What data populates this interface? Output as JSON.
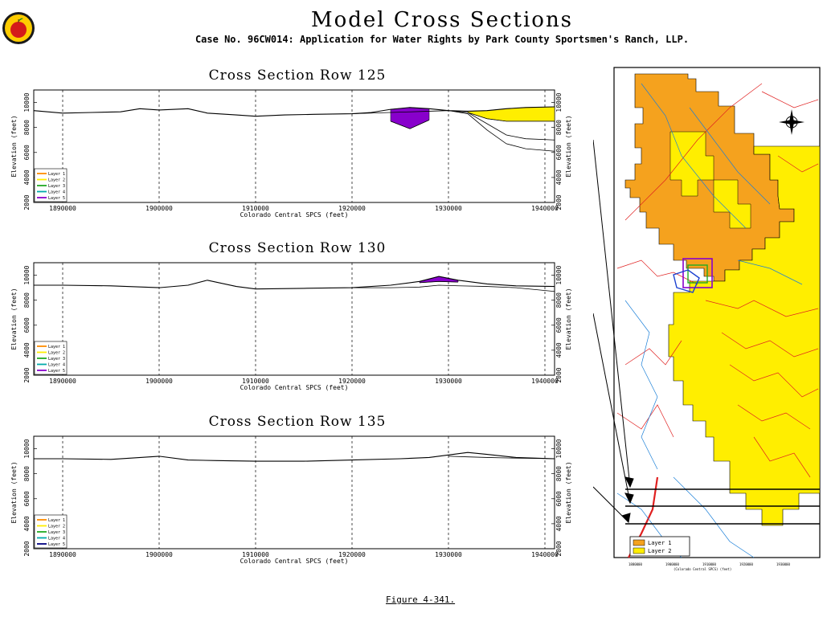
{
  "header": {
    "title": "Model Cross Sections",
    "subtitle": "Case No. 96CW014: Application for Water Rights by Park County Sportsmen's Ranch, LLP."
  },
  "figure_caption": "Figure 4-341.",
  "colors": {
    "layer1": "#ff8c00",
    "layer2": "#ffee00",
    "layer3": "#22aa22",
    "layer4": "#00aaaa",
    "layer5": "#8800cc",
    "map_orange": "#f5a21e",
    "map_yellow": "#ffee00",
    "map_red": "#e02020",
    "map_blue": "#1a7fd8"
  },
  "map": {
    "legend": [
      "Layer 1",
      "Layer 2"
    ],
    "x_ticks": [
      "1880000",
      "1900000",
      "1910000",
      "1920000",
      "1930000"
    ],
    "x_label": "(Colorado Central SPCS) (feet)"
  },
  "chart_data": [
    {
      "type": "area",
      "title": "Cross Section Row 125",
      "xlabel": "Colorado Central SPCS (feet)",
      "ylabel": "Elevation (feet)",
      "xlim": [
        1887000,
        1941000
      ],
      "ylim": [
        2000,
        11000
      ],
      "x_ticks": [
        1890000,
        1900000,
        1910000,
        1920000,
        1930000,
        1940000
      ],
      "x_tick_labels": [
        "1890000",
        "1900000",
        "1910000",
        "1920000",
        "1930000",
        "1940000"
      ],
      "y_ticks": [
        2000,
        4000,
        6000,
        8000,
        10000
      ],
      "y_tick_labels": [
        "2000",
        "4000",
        "6000",
        "8000",
        "10000"
      ],
      "legend": [
        "Layer 1",
        "Layer 2",
        "Layer 3",
        "Layer 4",
        "Layer 5"
      ],
      "legend_colors": [
        "#ff8c00",
        "#ffee00",
        "#22aa22",
        "#00aaaa",
        "#8800cc"
      ],
      "legend_position": "bottom-left",
      "x": [
        1887000,
        1890000,
        1893000,
        1896000,
        1898000,
        1900000,
        1903000,
        1905000,
        1908000,
        1910000,
        1913000,
        1916000,
        1920000,
        1922000,
        1924000,
        1926000,
        1928000,
        1930000,
        1932000,
        1934000,
        1936000,
        1938000,
        1941000
      ],
      "series": [
        {
          "name": "surface",
          "values": [
            9350,
            9150,
            9200,
            9250,
            9500,
            9400,
            9500,
            9150,
            9000,
            8900,
            9000,
            9050,
            9100,
            9200,
            9450,
            9600,
            9500,
            9350,
            9300,
            9350,
            9500,
            9600,
            9650
          ]
        },
        {
          "name": "bottom_a",
          "values": [
            null,
            null,
            null,
            null,
            null,
            null,
            null,
            null,
            null,
            null,
            null,
            null,
            9100,
            9150,
            9200,
            9250,
            9300,
            9350,
            9200,
            8300,
            7400,
            7100,
            7000
          ]
        },
        {
          "name": "bottom_b",
          "values": [
            null,
            null,
            null,
            null,
            null,
            null,
            null,
            null,
            null,
            null,
            null,
            null,
            null,
            null,
            null,
            null,
            null,
            9350,
            9100,
            7800,
            6700,
            6300,
            6100
          ]
        },
        {
          "name": "layer5_bottom",
          "values": [
            null,
            null,
            null,
            null,
            null,
            null,
            null,
            null,
            null,
            null,
            null,
            null,
            null,
            null,
            8500,
            7900,
            8600,
            null,
            null,
            null,
            null,
            null,
            null
          ]
        },
        {
          "name": "layer2_bottom",
          "values": [
            null,
            null,
            null,
            null,
            null,
            null,
            null,
            null,
            null,
            null,
            null,
            null,
            null,
            null,
            null,
            null,
            null,
            null,
            9200,
            8700,
            8500,
            8500,
            8500
          ]
        }
      ]
    },
    {
      "type": "area",
      "title": "Cross Section Row 130",
      "xlabel": "Colorado Central SPCS (feet)",
      "ylabel": "Elevation (feet)",
      "xlim": [
        1887000,
        1941000
      ],
      "ylim": [
        2000,
        11000
      ],
      "x_ticks": [
        1890000,
        1900000,
        1910000,
        1920000,
        1930000,
        1940000
      ],
      "x_tick_labels": [
        "1890000",
        "1900000",
        "1910000",
        "1920000",
        "1930000",
        "1940000"
      ],
      "y_ticks": [
        2000,
        4000,
        6000,
        8000,
        10000
      ],
      "y_tick_labels": [
        "2000",
        "4000",
        "6000",
        "8000",
        "10000"
      ],
      "legend": [
        "Layer 1",
        "Layer 2",
        "Layer 3",
        "Layer 4",
        "Layer 5"
      ],
      "legend_colors": [
        "#ff8c00",
        "#ffee00",
        "#22aa22",
        "#00aaaa",
        "#8800cc"
      ],
      "legend_position": "bottom-left",
      "x": [
        1887000,
        1890000,
        1895000,
        1900000,
        1903000,
        1905000,
        1908000,
        1910000,
        1915000,
        1920000,
        1924000,
        1927000,
        1929000,
        1931000,
        1934000,
        1937000,
        1941000
      ],
      "series": [
        {
          "name": "surface",
          "values": [
            9200,
            9200,
            9150,
            9000,
            9200,
            9600,
            9100,
            8900,
            8950,
            9000,
            9200,
            9500,
            9900,
            9600,
            9300,
            9150,
            9100
          ]
        },
        {
          "name": "bottom",
          "values": [
            null,
            null,
            null,
            null,
            null,
            null,
            null,
            null,
            null,
            9000,
            9000,
            9050,
            9200,
            9150,
            9100,
            9000,
            8700
          ]
        },
        {
          "name": "layer5_bottom",
          "values": [
            null,
            null,
            null,
            null,
            null,
            null,
            null,
            null,
            null,
            null,
            null,
            9400,
            9500,
            9450,
            null,
            null,
            null
          ]
        }
      ]
    },
    {
      "type": "area",
      "title": "Cross Section Row 135",
      "xlabel": "Colorado Central SPCS (feet)",
      "ylabel": "Elevation (feet)",
      "xlim": [
        1887000,
        1941000
      ],
      "ylim": [
        2000,
        11000
      ],
      "x_ticks": [
        1890000,
        1900000,
        1910000,
        1920000,
        1930000,
        1940000
      ],
      "x_tick_labels": [
        "1890000",
        "1900000",
        "1910000",
        "1920000",
        "1930000",
        "1940000"
      ],
      "y_ticks": [
        2000,
        4000,
        6000,
        8000,
        10000
      ],
      "y_tick_labels": [
        "2000",
        "4000",
        "6000",
        "8000",
        "10000"
      ],
      "legend": [
        "Layer 1",
        "Layer 2",
        "Layer 3",
        "Layer 4",
        "Layer 5"
      ],
      "legend_colors": [
        "#ff8c00",
        "#ffee00",
        "#22aa22",
        "#00aaaa",
        "#000080"
      ],
      "legend_position": "bottom-left",
      "x": [
        1887000,
        1890000,
        1895000,
        1900000,
        1903000,
        1906000,
        1910000,
        1915000,
        1920000,
        1925000,
        1928000,
        1930000,
        1932000,
        1934000,
        1937000,
        1941000
      ],
      "series": [
        {
          "name": "surface",
          "values": [
            9200,
            9200,
            9150,
            9400,
            9100,
            9050,
            9000,
            9000,
            9100,
            9200,
            9300,
            9500,
            9700,
            9550,
            9300,
            9200
          ]
        },
        {
          "name": "bottom",
          "values": [
            null,
            null,
            null,
            null,
            null,
            null,
            null,
            null,
            null,
            null,
            null,
            9400,
            9350,
            9300,
            9250,
            9200
          ]
        }
      ]
    }
  ]
}
